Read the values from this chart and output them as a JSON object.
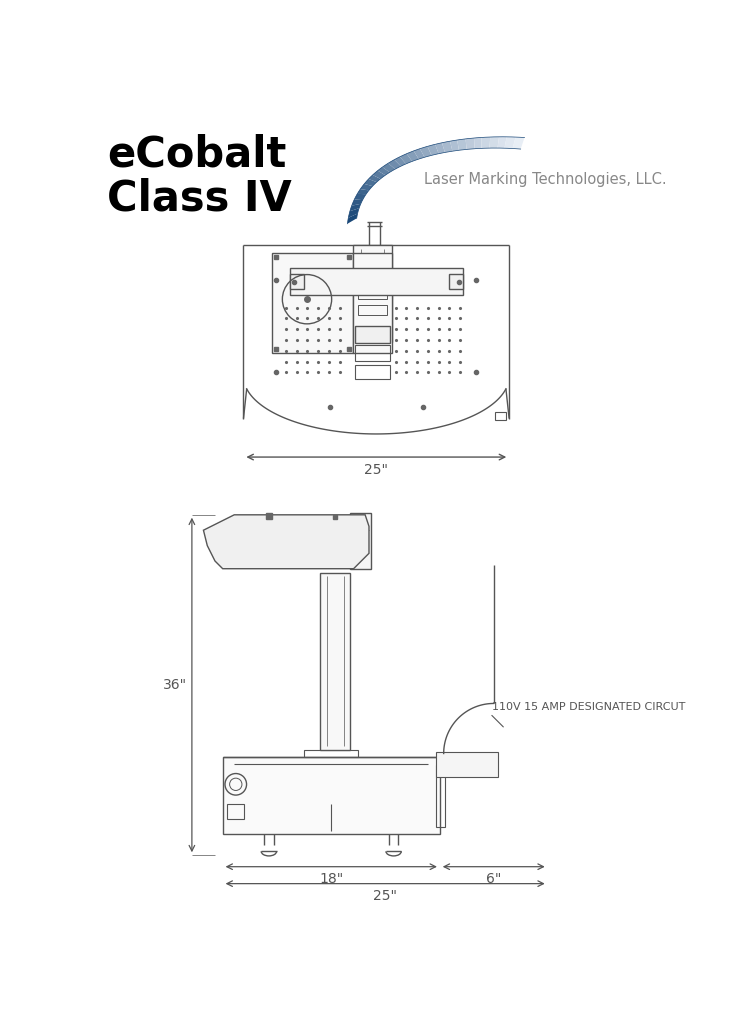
{
  "title": "eCobalt\nClass IV",
  "subtitle": "Laser Marking Technologies, LLC.",
  "bg_color": "#ffffff",
  "line_color": "#555555",
  "dim_color": "#555555",
  "logo_blue_dark": "#1a4878",
  "logo_blue_mid": "#3a7abf",
  "logo_blue_light": "#a8cce0",
  "logo_white": "#e8f4fa",
  "dim_25_top": "25\"",
  "dim_36": "36\"",
  "dim_18": "18\"",
  "dim_25_bot": "25\"",
  "dim_6": "6\"",
  "label_circuit": "110V 15 AMP DESIGNATED CIRCUT"
}
